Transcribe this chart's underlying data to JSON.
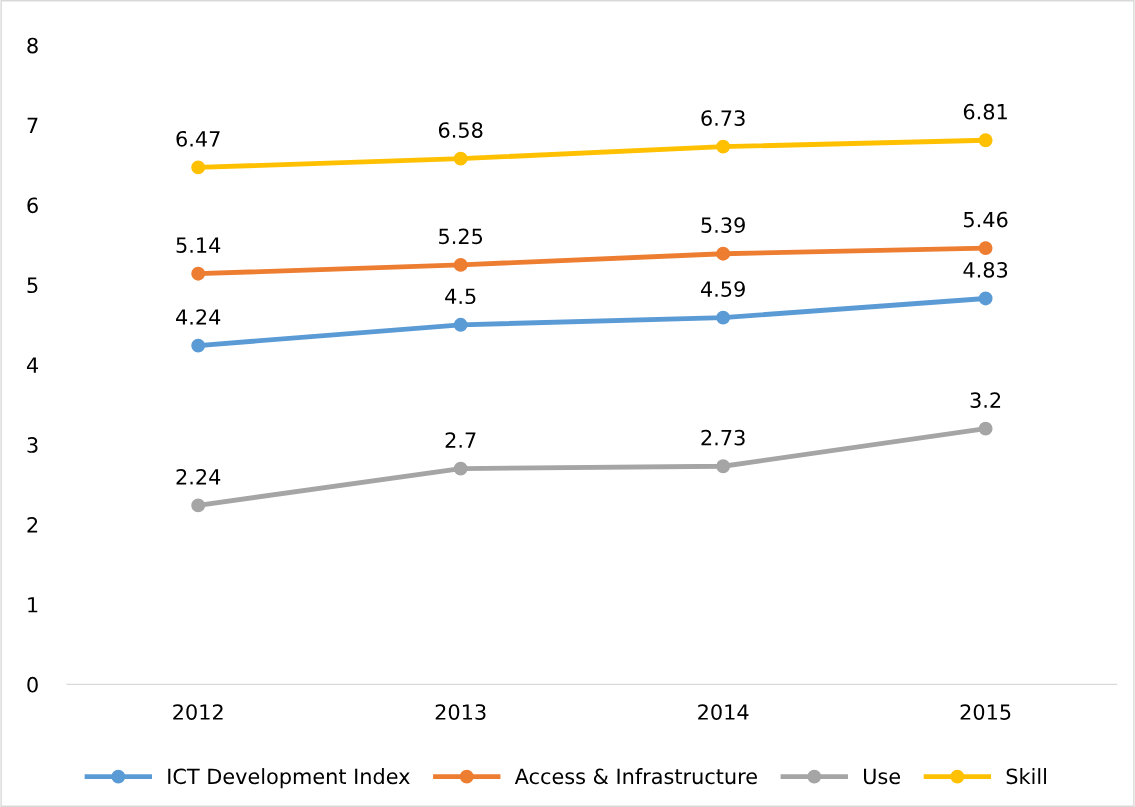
{
  "chart_data": {
    "type": "line",
    "categories": [
      "2012",
      "2013",
      "2014",
      "2015"
    ],
    "series": [
      {
        "name": "ICT Development Index",
        "color": "#5b9bd5",
        "values": [
          4.24,
          4.5,
          4.59,
          4.83
        ]
      },
      {
        "name": "Access & Infrastructure",
        "color": "#ed7d31",
        "values": [
          5.14,
          5.25,
          5.39,
          5.46
        ]
      },
      {
        "name": "Use",
        "color": "#a5a5a5",
        "values": [
          2.24,
          2.7,
          2.73,
          3.2
        ]
      },
      {
        "name": "Skill",
        "color": "#ffc000",
        "values": [
          6.47,
          6.58,
          6.73,
          6.81
        ]
      }
    ],
    "ylim": [
      0,
      8
    ],
    "yticks": [
      0,
      1,
      2,
      3,
      4,
      5,
      6,
      7,
      8
    ],
    "grid": false,
    "legend": "bottom",
    "marker": "circle",
    "line_style": "solid",
    "data_labels": true
  }
}
